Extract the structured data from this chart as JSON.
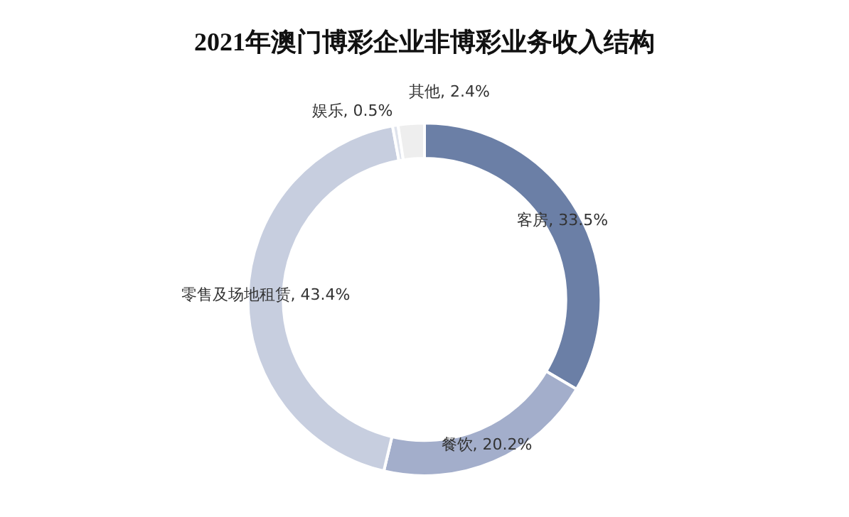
{
  "chart_data": {
    "type": "donut",
    "title": "2021年澳门博彩企业非博彩业务收入结构",
    "categories": [
      "客房",
      "餐饮",
      "零售及场地租赁",
      "娱乐",
      "其他"
    ],
    "values": [
      33.5,
      20.2,
      43.4,
      0.5,
      2.4
    ],
    "colors": [
      "#6b7fa6",
      "#a3aecb",
      "#c7cedf",
      "#dfe3ec",
      "#eeeeee"
    ],
    "value_labels": [
      "33.5%",
      "20.2%",
      "43.4%",
      "0.5%",
      "2.4%"
    ],
    "legend": false
  }
}
